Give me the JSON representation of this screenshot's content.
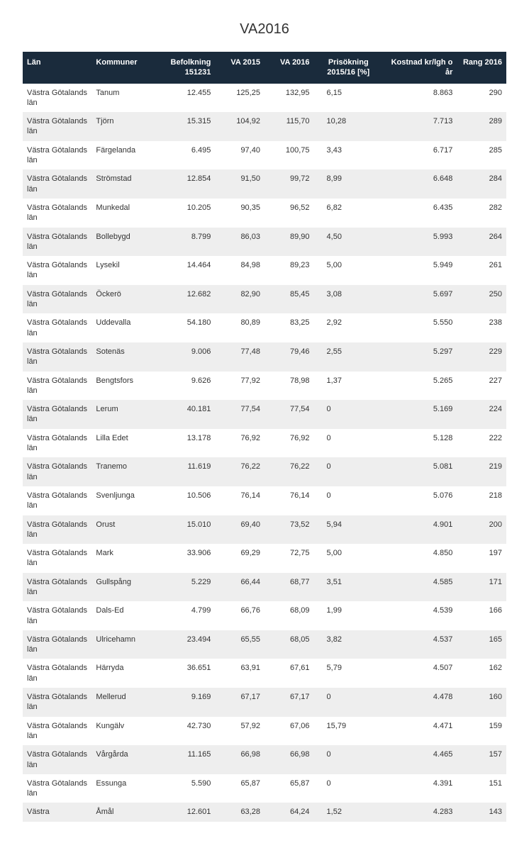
{
  "title": "VA2016",
  "table": {
    "type": "table",
    "background_color": "#ffffff",
    "header_bg": "#1a2b3c",
    "header_fg": "#ffffff",
    "row_even_bg": "#ffffff",
    "row_odd_bg": "#eeeeee",
    "text_color": "#333333",
    "font_size": 11,
    "columns": [
      {
        "key": "lan",
        "label": "Län",
        "width": "14%",
        "align": "left"
      },
      {
        "key": "kom",
        "label": "Kommuner",
        "width": "13%",
        "align": "left"
      },
      {
        "key": "bef",
        "label": "Befolkning 151231",
        "width": "12%",
        "align": "right"
      },
      {
        "key": "va2015",
        "label": "VA 2015",
        "width": "10%",
        "align": "right"
      },
      {
        "key": "va2016",
        "label": "VA 2016",
        "width": "10%",
        "align": "right"
      },
      {
        "key": "pris",
        "label": "Prisökning 2015/16 [%]",
        "width": "14%",
        "align": "center"
      },
      {
        "key": "kost",
        "label": "Kostnad kr/lgh o år",
        "width": "15%",
        "align": "right"
      },
      {
        "key": "rang",
        "label": "Rang 2016",
        "width": "10%",
        "align": "right"
      }
    ],
    "rows": [
      {
        "lan": "Västra Götalands län",
        "kom": "Tanum",
        "bef": "12.455",
        "va2015": "125,25",
        "va2016": "132,95",
        "pris": "6,15",
        "kost": "8.863",
        "rang": "290"
      },
      {
        "lan": "Västra Götalands län",
        "kom": "Tjörn",
        "bef": "15.315",
        "va2015": "104,92",
        "va2016": "115,70",
        "pris": "10,28",
        "kost": "7.713",
        "rang": "289"
      },
      {
        "lan": "Västra Götalands län",
        "kom": "Färgelanda",
        "bef": "6.495",
        "va2015": "97,40",
        "va2016": "100,75",
        "pris": "3,43",
        "kost": "6.717",
        "rang": "285"
      },
      {
        "lan": "Västra Götalands län",
        "kom": "Strömstad",
        "bef": "12.854",
        "va2015": "91,50",
        "va2016": "99,72",
        "pris": "8,99",
        "kost": "6.648",
        "rang": "284"
      },
      {
        "lan": "Västra Götalands län",
        "kom": "Munkedal",
        "bef": "10.205",
        "va2015": "90,35",
        "va2016": "96,52",
        "pris": "6,82",
        "kost": "6.435",
        "rang": "282"
      },
      {
        "lan": "Västra Götalands län",
        "kom": "Bollebygd",
        "bef": "8.799",
        "va2015": "86,03",
        "va2016": "89,90",
        "pris": "4,50",
        "kost": "5.993",
        "rang": "264"
      },
      {
        "lan": "Västra Götalands län",
        "kom": "Lysekil",
        "bef": "14.464",
        "va2015": "84,98",
        "va2016": "89,23",
        "pris": "5,00",
        "kost": "5.949",
        "rang": "261"
      },
      {
        "lan": "Västra Götalands län",
        "kom": "Öckerö",
        "bef": "12.682",
        "va2015": "82,90",
        "va2016": "85,45",
        "pris": "3,08",
        "kost": "5.697",
        "rang": "250"
      },
      {
        "lan": "Västra Götalands län",
        "kom": "Uddevalla",
        "bef": "54.180",
        "va2015": "80,89",
        "va2016": "83,25",
        "pris": "2,92",
        "kost": "5.550",
        "rang": "238"
      },
      {
        "lan": "Västra Götalands län",
        "kom": "Sotenäs",
        "bef": "9.006",
        "va2015": "77,48",
        "va2016": "79,46",
        "pris": "2,55",
        "kost": "5.297",
        "rang": "229"
      },
      {
        "lan": "Västra Götalands län",
        "kom": "Bengtsfors",
        "bef": "9.626",
        "va2015": "77,92",
        "va2016": "78,98",
        "pris": "1,37",
        "kost": "5.265",
        "rang": "227"
      },
      {
        "lan": "Västra Götalands län",
        "kom": "Lerum",
        "bef": "40.181",
        "va2015": "77,54",
        "va2016": "77,54",
        "pris": "0",
        "kost": "5.169",
        "rang": "224"
      },
      {
        "lan": "Västra Götalands län",
        "kom": "Lilla Edet",
        "bef": "13.178",
        "va2015": "76,92",
        "va2016": "76,92",
        "pris": "0",
        "kost": "5.128",
        "rang": "222"
      },
      {
        "lan": "Västra Götalands län",
        "kom": "Tranemo",
        "bef": "11.619",
        "va2015": "76,22",
        "va2016": "76,22",
        "pris": "0",
        "kost": "5.081",
        "rang": "219"
      },
      {
        "lan": "Västra Götalands län",
        "kom": "Svenljunga",
        "bef": "10.506",
        "va2015": "76,14",
        "va2016": "76,14",
        "pris": "0",
        "kost": "5.076",
        "rang": "218"
      },
      {
        "lan": "Västra Götalands län",
        "kom": "Orust",
        "bef": "15.010",
        "va2015": "69,40",
        "va2016": "73,52",
        "pris": "5,94",
        "kost": "4.901",
        "rang": "200"
      },
      {
        "lan": "Västra Götalands län",
        "kom": "Mark",
        "bef": "33.906",
        "va2015": "69,29",
        "va2016": "72,75",
        "pris": "5,00",
        "kost": "4.850",
        "rang": "197"
      },
      {
        "lan": "Västra Götalands län",
        "kom": "Gullspång",
        "bef": "5.229",
        "va2015": "66,44",
        "va2016": "68,77",
        "pris": "3,51",
        "kost": "4.585",
        "rang": "171"
      },
      {
        "lan": "Västra Götalands län",
        "kom": "Dals-Ed",
        "bef": "4.799",
        "va2015": "66,76",
        "va2016": "68,09",
        "pris": "1,99",
        "kost": "4.539",
        "rang": "166"
      },
      {
        "lan": "Västra Götalands län",
        "kom": "Ulricehamn",
        "bef": "23.494",
        "va2015": "65,55",
        "va2016": "68,05",
        "pris": "3,82",
        "kost": "4.537",
        "rang": "165"
      },
      {
        "lan": "Västra Götalands län",
        "kom": "Härryda",
        "bef": "36.651",
        "va2015": "63,91",
        "va2016": "67,61",
        "pris": "5,79",
        "kost": "4.507",
        "rang": "162"
      },
      {
        "lan": "Västra Götalands län",
        "kom": "Mellerud",
        "bef": "9.169",
        "va2015": "67,17",
        "va2016": "67,17",
        "pris": "0",
        "kost": "4.478",
        "rang": "160"
      },
      {
        "lan": "Västra Götalands län",
        "kom": "Kungälv",
        "bef": "42.730",
        "va2015": "57,92",
        "va2016": "67,06",
        "pris": "15,79",
        "kost": "4.471",
        "rang": "159"
      },
      {
        "lan": "Västra Götalands län",
        "kom": "Vårgårda",
        "bef": "11.165",
        "va2015": "66,98",
        "va2016": "66,98",
        "pris": "0",
        "kost": "4.465",
        "rang": "157"
      },
      {
        "lan": "Västra Götalands län",
        "kom": "Essunga",
        "bef": "5.590",
        "va2015": "65,87",
        "va2016": "65,87",
        "pris": "0",
        "kost": "4.391",
        "rang": "151"
      },
      {
        "lan": "Västra",
        "kom": "Åmål",
        "bef": "12.601",
        "va2015": "63,28",
        "va2016": "64,24",
        "pris": "1,52",
        "kost": "4.283",
        "rang": "143"
      }
    ]
  }
}
